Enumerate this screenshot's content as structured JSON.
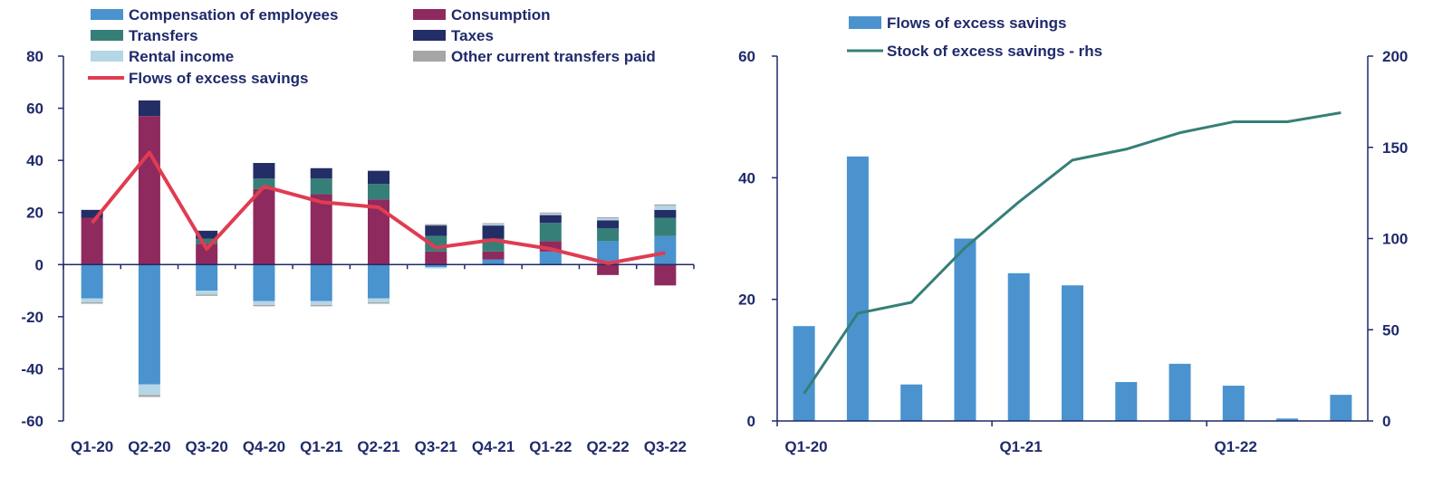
{
  "chart_data": [
    {
      "type": "bar",
      "stacked": true,
      "categories": [
        "Q1-20",
        "Q2-20",
        "Q3-20",
        "Q4-20",
        "Q1-21",
        "Q2-21",
        "Q3-21",
        "Q4-21",
        "Q1-22",
        "Q2-22",
        "Q3-22"
      ],
      "ylim": [
        -60,
        80
      ],
      "yticks": [
        -60,
        -40,
        -20,
        0,
        20,
        40,
        60,
        80
      ],
      "legend_position": "top",
      "series": [
        {
          "name": "Compensation of employees",
          "color": "#4a93cf",
          "values": [
            -13,
            -46,
            -10,
            -14,
            -14,
            -13,
            -1,
            2,
            5,
            9,
            11
          ]
        },
        {
          "name": "Consumption",
          "color": "#8e2a5e",
          "values": [
            18,
            57,
            8,
            29,
            27,
            25,
            5,
            3,
            4,
            -4,
            -8
          ]
        },
        {
          "name": "Transfers",
          "color": "#367f78",
          "values": [
            0,
            0,
            2,
            4,
            6,
            6,
            6,
            5,
            7,
            5,
            7
          ]
        },
        {
          "name": "Taxes",
          "color": "#232d66",
          "values": [
            3,
            6,
            3,
            6,
            4,
            5,
            4,
            5,
            3,
            3,
            3
          ]
        },
        {
          "name": "Rental income",
          "color": "#b5d6e6",
          "values": [
            -1.5,
            -4,
            -1.5,
            -1.5,
            -1.5,
            -1.5,
            -0.5,
            0.5,
            0.6,
            0.8,
            1.6
          ]
        },
        {
          "name": "Other current transfers paid",
          "color": "#a6a6a6",
          "values": [
            -0.5,
            -0.8,
            -0.5,
            -0.5,
            -0.5,
            -0.5,
            0.5,
            0.4,
            0.4,
            0.4,
            0.5
          ]
        }
      ],
      "line": {
        "name": "Flows of excess savings",
        "color": "#e03c52",
        "values": [
          16,
          43,
          6,
          30,
          24,
          22,
          6.5,
          9.5,
          6,
          0.5,
          4.5
        ]
      }
    },
    {
      "type": "bar+line",
      "categories": [
        "Q1-20",
        "Q2-20",
        "Q3-20",
        "Q4-20",
        "Q1-21",
        "Q2-21",
        "Q3-21",
        "Q4-21",
        "Q1-22",
        "Q2-22",
        "Q3-22"
      ],
      "xtick_labels": [
        "Q1-20",
        "Q1-21",
        "Q1-22"
      ],
      "ylim": [
        0,
        60
      ],
      "yticks": [
        0,
        20,
        40,
        60
      ],
      "y2lim": [
        0,
        200
      ],
      "y2ticks": [
        0,
        50,
        100,
        150,
        200
      ],
      "legend_position": "top",
      "bars": {
        "name": "Flows of excess savings",
        "color": "#4a93cf",
        "values": [
          15.6,
          43.5,
          6,
          30,
          24.3,
          22.3,
          6.4,
          9.4,
          5.8,
          0.4,
          4.3
        ]
      },
      "line": {
        "name": "Stock of excess savings - rhs",
        "axis": "right",
        "color": "#367f78",
        "values": [
          15,
          59,
          65,
          95,
          120,
          143,
          149,
          158,
          164,
          164,
          169
        ]
      }
    }
  ]
}
